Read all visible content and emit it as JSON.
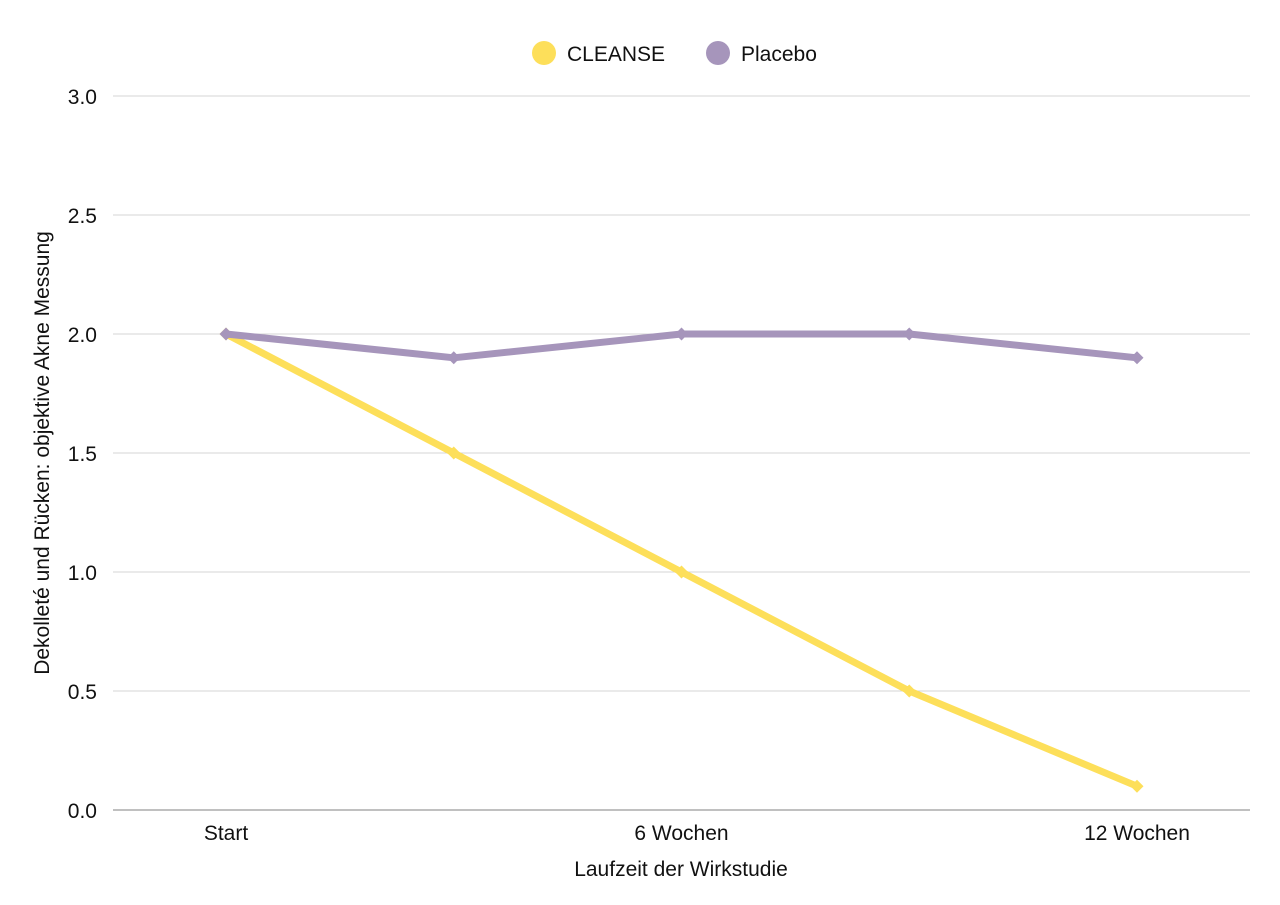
{
  "chart_data": {
    "type": "line",
    "categories": [
      "Start",
      "",
      "6 Wochen",
      "",
      "12 Wochen"
    ],
    "series": [
      {
        "name": "CLEANSE",
        "color": "#fddf5a",
        "values": [
          2.0,
          1.5,
          1.0,
          0.5,
          0.1
        ]
      },
      {
        "name": "Placebo",
        "color": "#a695bb",
        "values": [
          2.0,
          1.9,
          2.0,
          2.0,
          1.9
        ]
      }
    ],
    "yticks": [
      "0.0",
      "0.5",
      "1.0",
      "1.5",
      "2.0",
      "2.5",
      "3.0"
    ],
    "ylim": [
      0,
      3
    ],
    "xlabel": "Laufzeit der Wirkstudie",
    "ylabel": "Dekolleté und Rücken: objektive Akne Messung",
    "grid": true,
    "legend_position": "top-center"
  }
}
